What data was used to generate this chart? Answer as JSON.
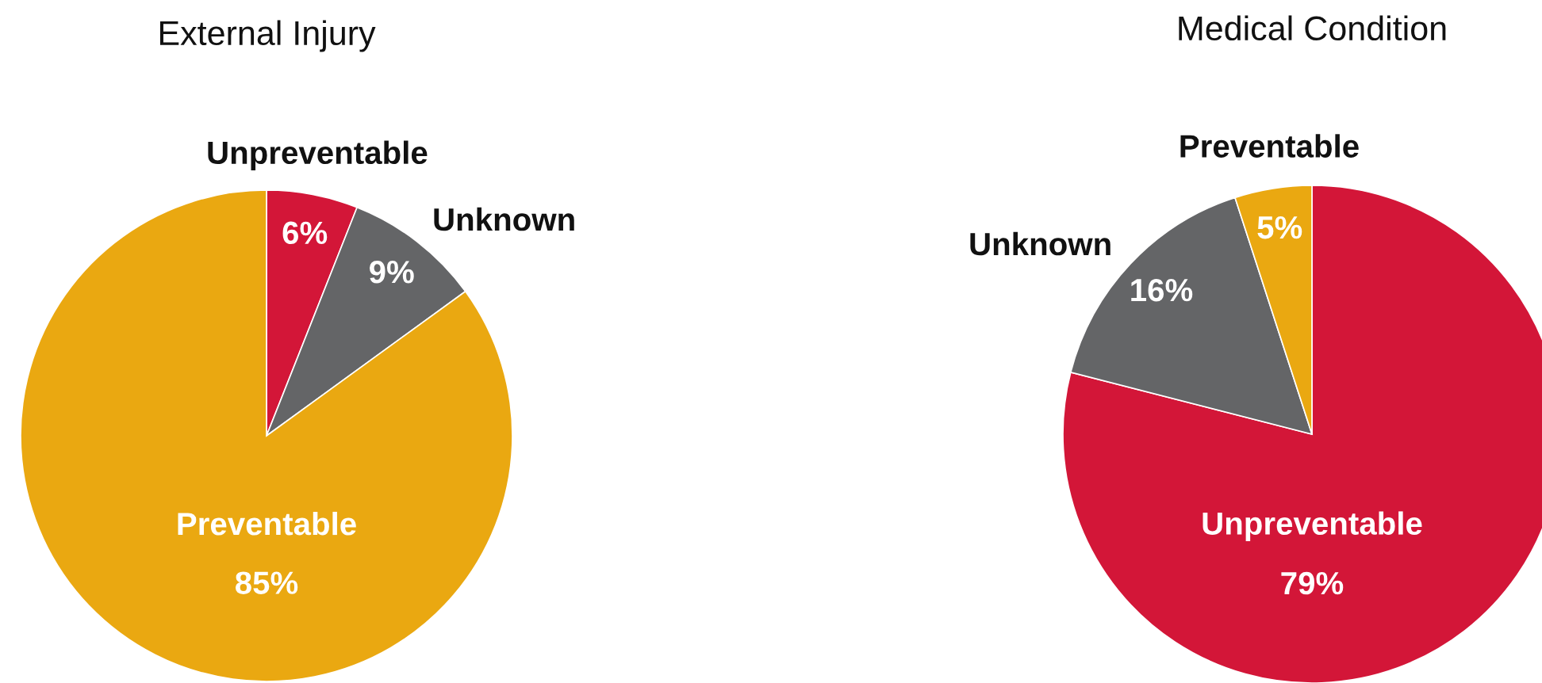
{
  "chart_data": [
    {
      "type": "pie",
      "title": "External Injury",
      "categories": [
        "Unpreventable",
        "Unknown",
        "Preventable"
      ],
      "values": [
        6,
        9,
        85
      ],
      "colors": [
        "#d31638",
        "#646567",
        "#eaa811"
      ],
      "value_labels": [
        "6%",
        "9%",
        "85%"
      ]
    },
    {
      "type": "pie",
      "title": "Medical Condition",
      "categories": [
        "Unpreventable",
        "Unknown",
        "Preventable"
      ],
      "values": [
        79,
        16,
        5
      ],
      "colors": [
        "#d31638",
        "#646567",
        "#eaa811"
      ],
      "value_labels": [
        "79%",
        "16%",
        "5%"
      ]
    }
  ]
}
